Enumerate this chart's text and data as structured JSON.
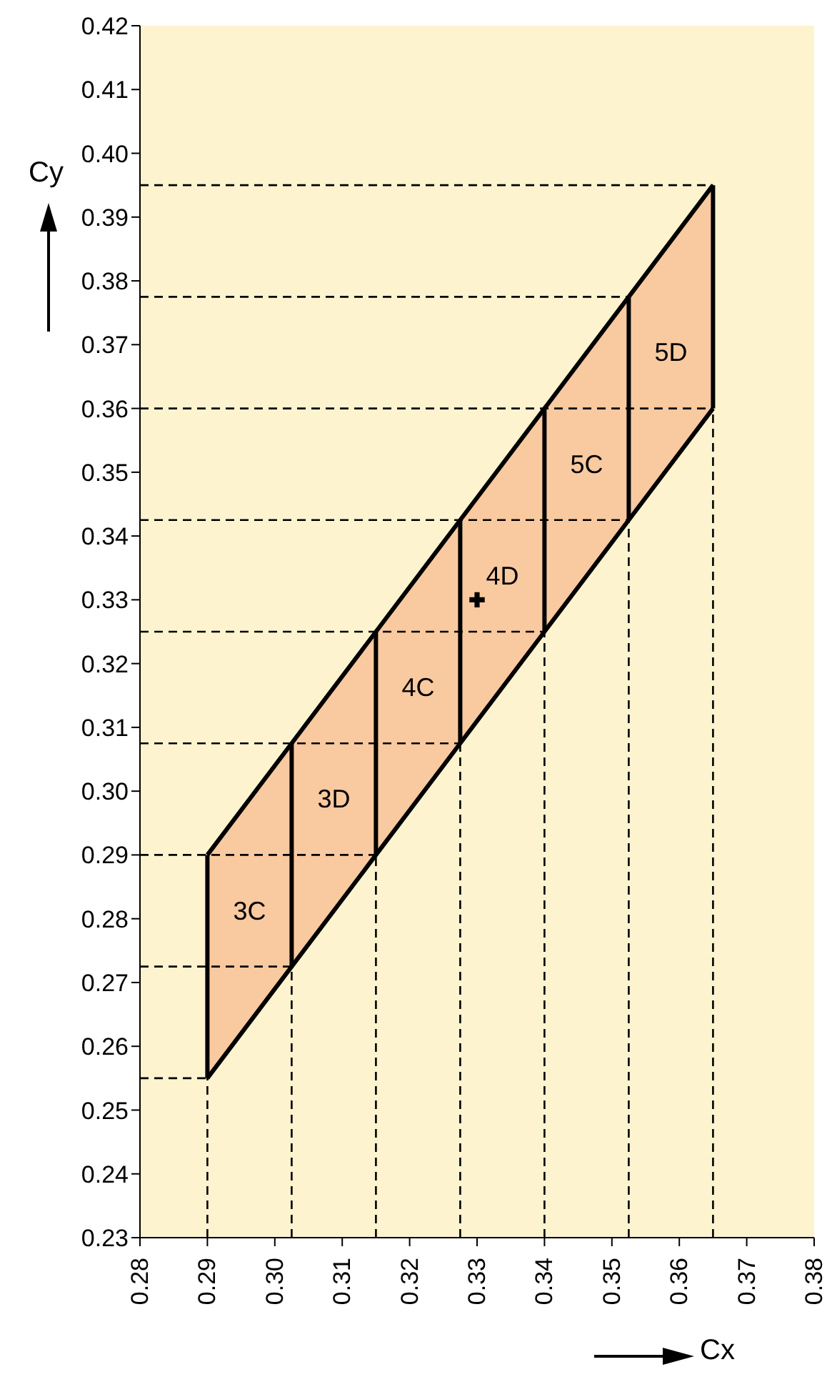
{
  "chart_data": {
    "type": "area",
    "xlabel": "Cx",
    "ylabel": "Cy",
    "xlim": [
      0.28,
      0.38
    ],
    "ylim": [
      0.23,
      0.42
    ],
    "xticks": [
      0.28,
      0.29,
      {
        "value": 0.3,
        "label": "0.30"
      },
      0.31,
      0.32,
      0.33,
      0.34,
      0.35,
      0.36,
      0.37,
      0.38
    ],
    "yticks": [
      0.23,
      0.24,
      0.25,
      0.26,
      0.27,
      0.28,
      0.29,
      {
        "value": 0.3,
        "label": "0.30"
      },
      0.31,
      0.32,
      0.33,
      0.34,
      0.35,
      0.36,
      0.37,
      0.38,
      0.39,
      {
        "value": 0.4,
        "label": "0.40"
      },
      0.41,
      0.42
    ],
    "grid": false,
    "annotations": [
      "3C",
      "3D",
      "4C",
      "4D",
      "5C",
      "5D"
    ],
    "series": [
      {
        "color": "#f9c9a0",
        "x": [
          0.29,
          0.3025,
          0.315,
          0.3275,
          0.34,
          0.3525,
          0.365
        ],
        "values": [
          0.29,
          0.3075,
          0.325,
          0.3425,
          0.36,
          0.3775,
          0.395
        ]
      },
      {
        "type": "line",
        "line_style": "solid",
        "color": "#000000",
        "x": [
          0.29,
          0.3025,
          0.315,
          0.3275,
          0.34,
          0.3525,
          0.365
        ],
        "values": [
          0.255,
          0.2725,
          0.29,
          0.3075,
          0.325,
          0.3425,
          0.36
        ]
      },
      {
        "type": "line",
        "line_style": "dashed",
        "color": "#000000",
        "x": [
          0.28,
          0.29
        ],
        "values": [
          0.255,
          0.255
        ]
      },
      {
        "type": "line",
        "line_style": "dashed",
        "color": "#000000",
        "x": [
          0.28,
          0.3025
        ],
        "values": [
          0.2725,
          0.2725
        ]
      },
      {
        "type": "line",
        "line_style": "dashed",
        "color": "#000000",
        "x": [
          0.28,
          0.315
        ],
        "values": [
          0.29,
          0.29
        ]
      },
      {
        "type": "line",
        "line_style": "dashed",
        "color": "#000000",
        "x": [
          0.28,
          0.3275
        ],
        "values": [
          0.3075,
          0.3075
        ]
      },
      {
        "type": "line",
        "line_style": "dashed",
        "color": "#000000",
        "x": [
          0.28,
          0.34
        ],
        "values": [
          0.325,
          0.325
        ]
      },
      {
        "type": "line",
        "line_style": "dashed",
        "color": "#000000",
        "x": [
          0.28,
          0.3525
        ],
        "values": [
          0.3425,
          0.3425
        ]
      },
      {
        "type": "line",
        "line_style": "dashed",
        "color": "#000000",
        "x": [
          0.28,
          0.365
        ],
        "values": [
          0.36,
          0.36
        ]
      },
      {
        "type": "line",
        "line_style": "dashed",
        "color": "#000000",
        "x": [
          0.28,
          0.3525
        ],
        "values": [
          0.3775,
          0.3775
        ]
      },
      {
        "type": "line",
        "line_style": "dashed",
        "color": "#000000",
        "x": [
          0.28,
          0.365
        ],
        "values": [
          0.395,
          0.395
        ]
      },
      {
        "type": "line",
        "line_style": "dashed",
        "color": "#000000",
        "x": [
          0.29,
          0.29
        ],
        "values": [
          0.23,
          0.255
        ]
      },
      {
        "type": "line",
        "line_style": "dashed",
        "color": "#000000",
        "x": [
          0.3025,
          0.3025
        ],
        "values": [
          0.23,
          0.2725
        ]
      },
      {
        "type": "line",
        "line_style": "dashed",
        "color": "#000000",
        "x": [
          0.315,
          0.315
        ],
        "values": [
          0.23,
          0.29
        ]
      },
      {
        "type": "line",
        "line_style": "dashed",
        "color": "#000000",
        "x": [
          0.3275,
          0.3275
        ],
        "values": [
          0.23,
          0.3075
        ]
      },
      {
        "type": "line",
        "line_style": "dashed",
        "color": "#000000",
        "x": [
          0.34,
          0.34
        ],
        "values": [
          0.23,
          0.325
        ]
      },
      {
        "type": "line",
        "line_style": "dashed",
        "color": "#000000",
        "x": [
          0.3525,
          0.3525
        ],
        "values": [
          0.23,
          0.3425
        ]
      },
      {
        "type": "line",
        "line_style": "dashed",
        "color": "#000000",
        "x": [
          0.365,
          0.365
        ],
        "values": [
          0.23,
          0.36
        ]
      },
      {
        "type": "line",
        "line_style": "solid",
        "color": "#000000",
        "x": [
          0.29,
          0.29
        ],
        "values": [
          0.255,
          0.29
        ]
      },
      {
        "type": "line",
        "line_style": "solid",
        "color": "#000000",
        "x": [
          0.3025,
          0.3025
        ],
        "values": [
          0.2725,
          0.3075
        ]
      },
      {
        "type": "line",
        "line_style": "solid",
        "color": "#000000",
        "x": [
          0.315,
          0.315
        ],
        "values": [
          0.29,
          0.325
        ]
      },
      {
        "type": "line",
        "line_style": "solid",
        "color": "#000000",
        "x": [
          0.3275,
          0.3275
        ],
        "values": [
          0.3075,
          0.3425
        ]
      },
      {
        "type": "line",
        "line_style": "solid",
        "color": "#000000",
        "x": [
          0.34,
          0.34
        ],
        "values": [
          0.325,
          0.36
        ]
      },
      {
        "type": "line",
        "line_style": "solid",
        "color": "#000000",
        "x": [
          0.3525,
          0.3525
        ],
        "values": [
          0.3425,
          0.3775
        ]
      },
      {
        "type": "line",
        "line_style": "solid",
        "color": "#000000",
        "x": [
          0.365,
          0.365
        ],
        "values": [
          0.36,
          0.395
        ]
      },
      {
        "type": "scatter",
        "marker": "cross",
        "color": "#000000",
        "x": [
          0.33
        ],
        "values": [
          0.33
        ]
      }
    ]
  }
}
